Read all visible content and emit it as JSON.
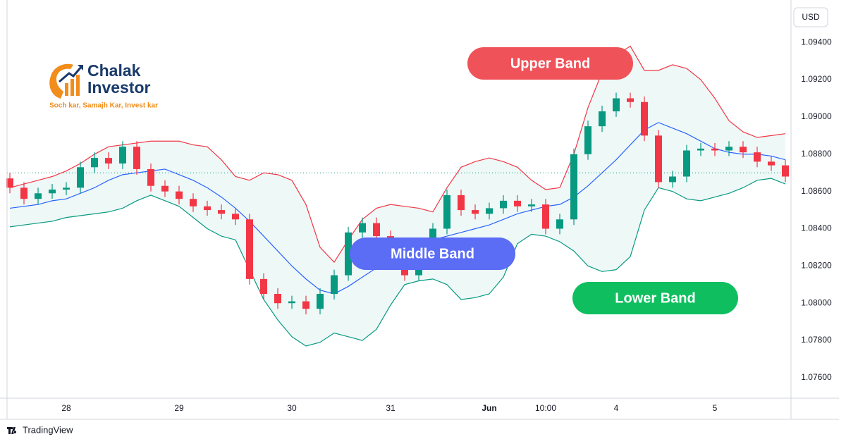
{
  "chart_data": {
    "type": "candlestick",
    "currency": "USD",
    "categories": [
      null,
      null,
      null,
      null,
      "28",
      null,
      null,
      null,
      null,
      null,
      null,
      null,
      "29",
      null,
      null,
      null,
      null,
      null,
      null,
      null,
      "30",
      null,
      null,
      null,
      null,
      null,
      null,
      "31",
      null,
      null,
      null,
      null,
      null,
      null,
      "Jun",
      null,
      null,
      null,
      "10:00",
      null,
      null,
      null,
      null,
      "4",
      null,
      null,
      null,
      null,
      null,
      null,
      "5",
      null,
      null,
      null,
      null,
      null
    ],
    "open": [
      1.0867,
      1.0862,
      1.0856,
      1.0859,
      1.0861,
      1.0862,
      1.0873,
      1.0878,
      1.0875,
      1.0884,
      1.0872,
      1.0863,
      1.086,
      1.0856,
      1.0852,
      1.085,
      1.0848,
      1.0845,
      1.0813,
      1.0805,
      1.08,
      1.0801,
      1.0797,
      1.0805,
      1.0815,
      1.0838,
      1.0843,
      1.0836,
      1.083,
      1.0815,
      1.0822,
      1.084,
      1.0858,
      1.085,
      1.0848,
      1.0851,
      1.0855,
      1.0852,
      1.0853,
      1.084,
      1.0845,
      1.088,
      1.0895,
      1.0903,
      1.091,
      1.0908,
      1.089,
      1.0865,
      1.0868,
      1.0882,
      1.0883,
      1.0882,
      1.0884,
      1.0881,
      1.0876,
      1.0874
    ],
    "high": [
      1.087,
      1.0865,
      1.0862,
      1.0864,
      1.0865,
      1.0876,
      1.0881,
      1.0881,
      1.0887,
      1.0887,
      1.0875,
      1.0866,
      1.0863,
      1.0859,
      1.0855,
      1.0853,
      1.0851,
      1.0848,
      1.0816,
      1.0808,
      1.0804,
      1.0804,
      1.0808,
      1.0818,
      1.0841,
      1.0846,
      1.0846,
      1.0839,
      1.0833,
      1.0825,
      1.0843,
      1.0861,
      1.0861,
      1.0853,
      1.0854,
      1.0858,
      1.0858,
      1.0856,
      1.0856,
      1.0848,
      1.0883,
      1.0898,
      1.0906,
      1.0913,
      1.0913,
      1.0911,
      1.0893,
      1.0871,
      1.0885,
      1.0886,
      1.0886,
      1.0887,
      1.0887,
      1.0884,
      1.0879,
      1.0877
    ],
    "low": [
      1.0859,
      1.0853,
      1.0853,
      1.0856,
      1.0858,
      1.0859,
      1.087,
      1.0872,
      1.0872,
      1.0869,
      1.086,
      1.0857,
      1.0853,
      1.0849,
      1.0847,
      1.0845,
      1.0842,
      1.081,
      1.0802,
      1.0797,
      1.0797,
      1.0794,
      1.0794,
      1.0802,
      1.0812,
      1.0835,
      1.0833,
      1.0827,
      1.0812,
      1.0812,
      1.0819,
      1.0837,
      1.0847,
      1.0845,
      1.0845,
      1.0848,
      1.0849,
      1.0849,
      1.0837,
      1.0837,
      1.0842,
      1.0877,
      1.0892,
      1.09,
      1.0905,
      1.0887,
      1.0862,
      1.0862,
      1.0865,
      1.0879,
      1.0879,
      1.0879,
      1.0878,
      1.0873,
      1.0871,
      1.0865
    ],
    "close": [
      1.0862,
      1.0856,
      1.0859,
      1.0861,
      1.0862,
      1.0873,
      1.0878,
      1.0875,
      1.0884,
      1.0872,
      1.0863,
      1.086,
      1.0856,
      1.0852,
      1.085,
      1.0848,
      1.0845,
      1.0813,
      1.0805,
      1.08,
      1.0801,
      1.0797,
      1.0805,
      1.0815,
      1.0838,
      1.0843,
      1.0836,
      1.083,
      1.0815,
      1.0822,
      1.084,
      1.0858,
      1.085,
      1.0848,
      1.0851,
      1.0855,
      1.0852,
      1.0853,
      1.084,
      1.0845,
      1.088,
      1.0895,
      1.0903,
      1.091,
      1.0908,
      1.089,
      1.0865,
      1.0868,
      1.0882,
      1.0883,
      1.0882,
      1.0884,
      1.0881,
      1.0876,
      1.0874,
      1.0868
    ],
    "up_color": "#089981",
    "down_color": "#f23645",
    "series": [
      {
        "name": "Upper Band",
        "color": "#f23645",
        "label_color": "#f0525a",
        "values": [
          1.0862,
          1.0864,
          1.0866,
          1.0868,
          1.0871,
          1.0875,
          1.088,
          1.0884,
          1.0885,
          1.0886,
          1.0887,
          1.0887,
          1.0887,
          1.0885,
          1.0884,
          1.0877,
          1.0868,
          1.0866,
          1.087,
          1.0869,
          1.0866,
          1.0853,
          1.083,
          1.0822,
          1.0834,
          1.0845,
          1.0851,
          1.0853,
          1.0852,
          1.0851,
          1.0849,
          1.0862,
          1.0873,
          1.0876,
          1.0878,
          1.0876,
          1.0873,
          1.0866,
          1.0861,
          1.0862,
          1.088,
          1.0905,
          1.0924,
          1.0933,
          1.0938,
          1.0925,
          1.0925,
          1.0928,
          1.0926,
          1.092,
          1.091,
          1.0898,
          1.0892,
          1.0889,
          1.089,
          1.0891
        ]
      },
      {
        "name": "Middle Band",
        "color": "#2962ff",
        "label_color": "#5b6cf5",
        "values": [
          1.0851,
          1.0852,
          1.0853,
          1.0855,
          1.0856,
          1.0859,
          1.0862,
          1.0866,
          1.0869,
          1.087,
          1.0871,
          1.0872,
          1.0869,
          1.0866,
          1.0862,
          1.0857,
          1.0851,
          1.0844,
          1.0836,
          1.0828,
          1.082,
          1.0813,
          1.0807,
          1.0805,
          1.0809,
          1.0814,
          1.0819,
          1.0823,
          1.0827,
          1.0831,
          1.0834,
          1.0836,
          1.0838,
          1.084,
          1.0842,
          1.0845,
          1.0848,
          1.085,
          1.0852,
          1.0853,
          1.0857,
          1.0863,
          1.087,
          1.0877,
          1.0885,
          1.0893,
          1.0897,
          1.0894,
          1.0891,
          1.0887,
          1.0883,
          1.0881,
          1.088,
          1.088,
          1.0879,
          1.0877
        ]
      },
      {
        "name": "Lower Band",
        "color": "#089981",
        "label_color": "#0fbf5f",
        "values": [
          1.0841,
          1.0842,
          1.0843,
          1.0844,
          1.0846,
          1.0847,
          1.0848,
          1.0849,
          1.0851,
          1.0855,
          1.0858,
          1.0855,
          1.0852,
          1.0846,
          1.084,
          1.0836,
          1.0834,
          1.0818,
          1.0802,
          1.0791,
          1.0782,
          1.0777,
          1.0779,
          1.0784,
          1.0782,
          1.078,
          1.0786,
          1.0799,
          1.081,
          1.0812,
          1.0813,
          1.081,
          1.0802,
          1.0803,
          1.0805,
          1.0814,
          1.0832,
          1.0837,
          1.0836,
          1.0833,
          1.0828,
          1.082,
          1.0817,
          1.0818,
          1.0825,
          1.085,
          1.0862,
          1.086,
          1.0856,
          1.0855,
          1.0857,
          1.0859,
          1.0862,
          1.0866,
          1.0867,
          1.0864
        ]
      }
    ],
    "price_line": 1.087,
    "ylim": [
      1.0749,
      1.0959
    ],
    "yticks": [
      {
        "value": 1.076,
        "label": "1.07600"
      },
      {
        "value": 1.078,
        "label": "1.07800"
      },
      {
        "value": 1.08,
        "label": "1.08000"
      },
      {
        "value": 1.082,
        "label": "1.08200"
      },
      {
        "value": 1.084,
        "label": "1.08400"
      },
      {
        "value": 1.086,
        "label": "1.08600"
      },
      {
        "value": 1.088,
        "label": "1.08800"
      },
      {
        "value": 1.09,
        "label": "1.09000"
      },
      {
        "value": 1.092,
        "label": "1.09200"
      },
      {
        "value": 1.094,
        "label": "1.09400"
      }
    ],
    "grid": false
  },
  "logo": {
    "line1": "Chalak",
    "line2": "Investor",
    "tagline": "Soch kar, Samajh Kar, Invest kar"
  },
  "footer": "TradingView"
}
